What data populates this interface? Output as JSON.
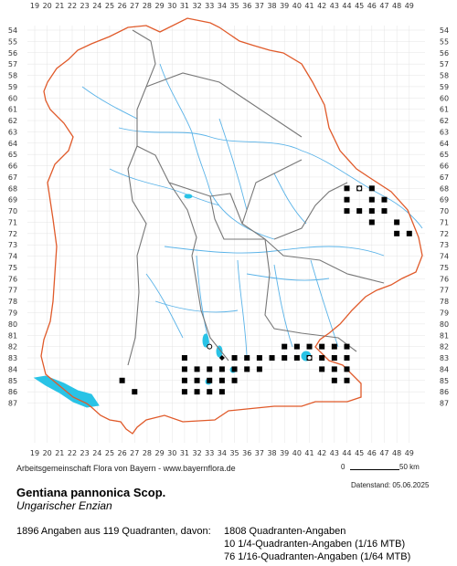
{
  "map": {
    "top_ticks": [
      "19",
      "20",
      "21",
      "22",
      "23",
      "24",
      "25",
      "26",
      "27",
      "28",
      "29",
      "30",
      "31",
      "32",
      "33",
      "34",
      "35",
      "36",
      "37",
      "38",
      "39",
      "40",
      "41",
      "42",
      "43",
      "44",
      "45",
      "46",
      "47",
      "48",
      "49"
    ],
    "side_ticks": [
      "54",
      "55",
      "56",
      "57",
      "58",
      "59",
      "60",
      "61",
      "62",
      "63",
      "64",
      "65",
      "66",
      "67",
      "68",
      "69",
      "70",
      "71",
      "72",
      "73",
      "74",
      "75",
      "76",
      "77",
      "78",
      "79",
      "80",
      "81",
      "82",
      "83",
      "84",
      "85",
      "86",
      "87"
    ],
    "colors": {
      "border": "#e05a2a",
      "district": "#777777",
      "rivers": "#5ab3e8",
      "lakes": "#29c3e6",
      "grid": "#dddddd",
      "record": "#000000"
    },
    "records": [
      [
        44,
        68
      ],
      [
        45,
        68
      ],
      [
        46,
        68
      ],
      [
        44,
        69
      ],
      [
        46,
        69
      ],
      [
        47,
        69
      ],
      [
        44,
        70
      ],
      [
        45,
        70
      ],
      [
        46,
        70
      ],
      [
        47,
        70
      ],
      [
        46,
        71
      ],
      [
        48,
        71
      ],
      [
        48,
        72
      ],
      [
        49,
        72
      ],
      [
        39,
        82
      ],
      [
        40,
        82
      ],
      [
        41,
        82
      ],
      [
        42,
        82
      ],
      [
        43,
        82
      ],
      [
        44,
        82
      ],
      [
        31,
        83
      ],
      [
        35,
        83
      ],
      [
        36,
        83
      ],
      [
        37,
        83
      ],
      [
        38,
        83
      ],
      [
        39,
        83
      ],
      [
        40,
        83
      ],
      [
        41,
        83
      ],
      [
        42,
        83
      ],
      [
        43,
        83
      ],
      [
        44,
        83
      ],
      [
        31,
        84
      ],
      [
        32,
        84
      ],
      [
        33,
        84
      ],
      [
        34,
        84
      ],
      [
        35,
        84
      ],
      [
        36,
        84
      ],
      [
        37,
        84
      ],
      [
        42,
        84
      ],
      [
        43,
        84
      ],
      [
        44,
        84
      ],
      [
        31,
        85
      ],
      [
        32,
        85
      ],
      [
        33,
        85
      ],
      [
        34,
        85
      ],
      [
        35,
        85
      ],
      [
        43,
        85
      ],
      [
        44,
        85
      ],
      [
        31,
        86
      ],
      [
        32,
        86
      ],
      [
        33,
        86
      ],
      [
        34,
        86
      ],
      [
        26,
        85
      ],
      [
        27,
        86
      ]
    ],
    "open_records": [
      [
        45,
        68
      ],
      [
        33,
        82
      ],
      [
        41,
        83
      ]
    ],
    "diamond_records": [
      [
        44,
        70
      ],
      [
        34,
        83
      ]
    ]
  },
  "footer": {
    "credit": "Arbeitsgemeinschaft Flora von Bayern - www.bayernflora.de",
    "date": "Datenstand: 05.06.2025",
    "scale_zero": "0",
    "scale_km": "50 km"
  },
  "species": {
    "name": "Gentiana pannonica Scop.",
    "german": "Ungarischer Enzian"
  },
  "stats": {
    "summary": "1896 Angaben aus 119 Quadranten, davon:",
    "line1": "1808 Quadranten-Angaben",
    "line2": "10 1/4-Quadranten-Angaben (1/16 MTB)",
    "line3": "76 1/16-Quadranten-Angaben (1/64 MTB)"
  }
}
